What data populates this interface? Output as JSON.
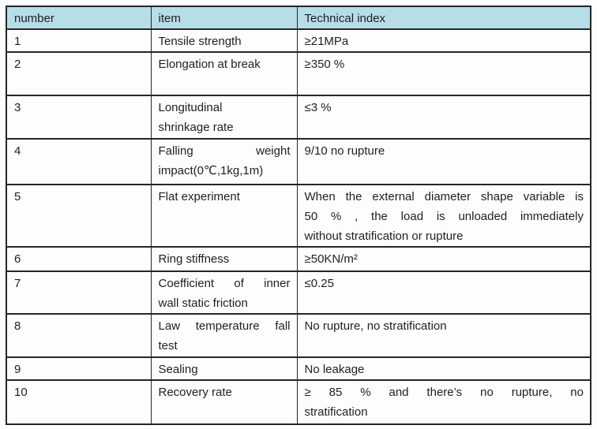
{
  "colors": {
    "header-bg": "#b7dde8",
    "border-color": "#262626",
    "text-color": "#1f1f1f",
    "page-bg": "#fdfdfd"
  },
  "table": {
    "headers": [
      "number",
      "item",
      "Technical index"
    ],
    "rows": [
      {
        "number": "1",
        "item": "Tensile strength",
        "tech": "≥21MPa"
      },
      {
        "number": "2",
        "item": "Elongation at break",
        "tech": "≥350 %"
      },
      {
        "number": "3",
        "item_lines": [
          "Longitudinal",
          "shrinkage rate"
        ],
        "tech": "≤3 %"
      },
      {
        "number": "4",
        "item_lines": [
          "Falling weight",
          "impact(0℃,1kg,1m)"
        ],
        "tech": "9/10 no rupture"
      },
      {
        "number": "5",
        "item": "Flat experiment",
        "tech_lines": [
          "When the external diameter shape variable is",
          "50 % , the load is unloaded immediately",
          "without stratification or rupture"
        ]
      },
      {
        "number": "6",
        "item": "Ring stiffness",
        "tech": "≥50KN/m²"
      },
      {
        "number": "7",
        "item_lines": [
          "Coefficient of inner",
          "wall static friction"
        ],
        "tech": "≤0.25"
      },
      {
        "number": "8",
        "item_lines": [
          "Law temperature fall",
          "test"
        ],
        "tech": "No rupture, no stratification"
      },
      {
        "number": "9",
        "item": "Sealing",
        "tech": "No leakage"
      },
      {
        "number": "10",
        "item": "Recovery rate",
        "tech_lines": [
          "≥ 85 % and there’s no rupture, no",
          "stratification"
        ]
      }
    ]
  }
}
